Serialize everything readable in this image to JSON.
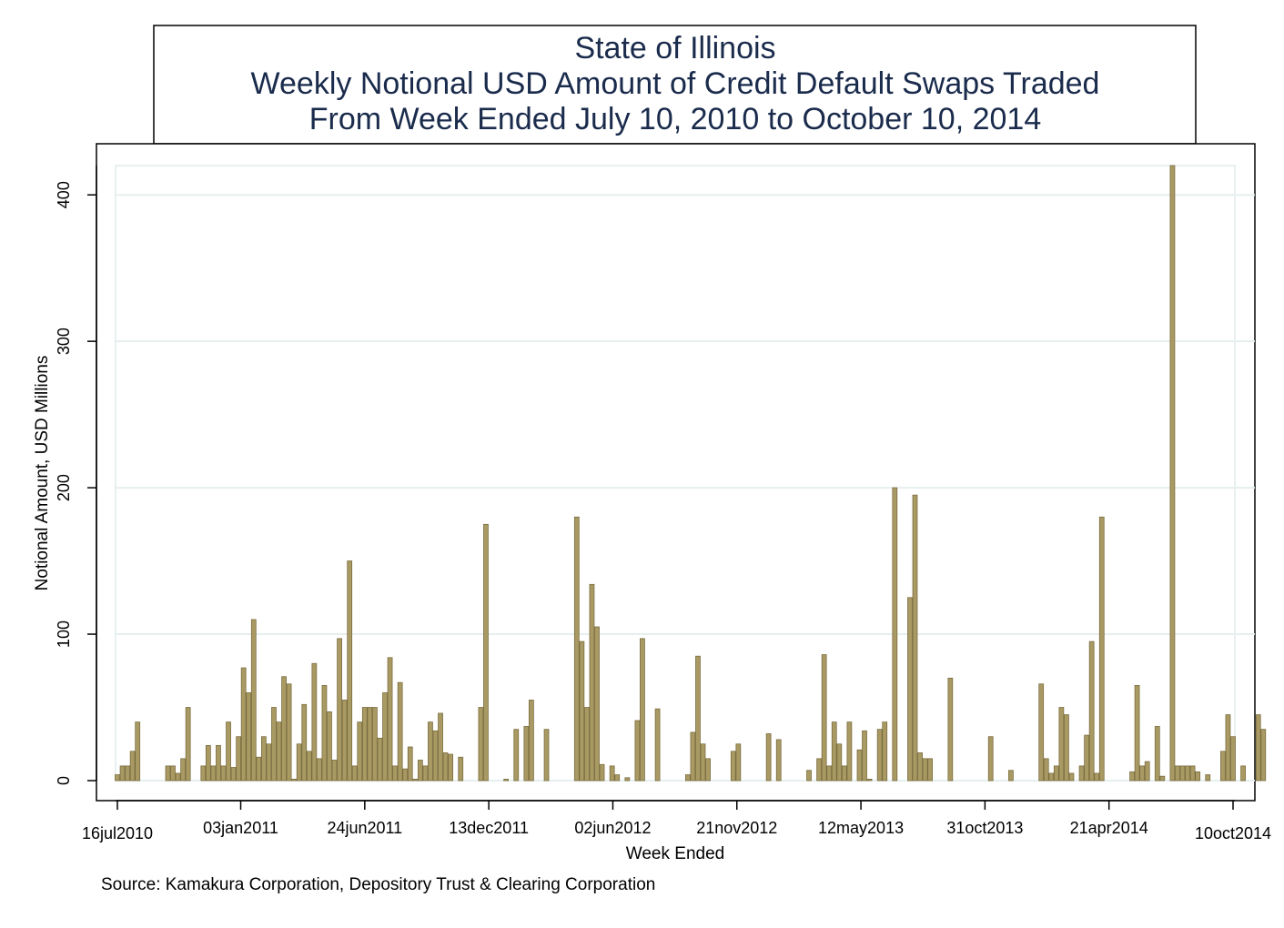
{
  "chart_data": {
    "type": "bar",
    "title_lines": [
      "State of Illinois",
      "Weekly Notional USD Amount of Credit Default Swaps Traded",
      "From Week Ended July 10, 2010 to October 10, 2014"
    ],
    "xlabel": "Week Ended",
    "ylabel": "Notional Amount, USD Millions",
    "note": "Source: Kamakura Corporation, Depository Trust & Clearing Corporation",
    "ylim": [
      0,
      420
    ],
    "yticks": [
      0,
      100,
      200,
      300,
      400
    ],
    "x_range": [
      "2010-07-16",
      "2014-10-10"
    ],
    "xticks": [
      {
        "date": "2010-07-16",
        "label": "16jul2010"
      },
      {
        "date": "2011-01-03",
        "label": "03jan2011"
      },
      {
        "date": "2011-06-24",
        "label": "24jun2011"
      },
      {
        "date": "2011-12-13",
        "label": "13dec2011"
      },
      {
        "date": "2012-06-02",
        "label": "02jun2012"
      },
      {
        "date": "2012-11-21",
        "label": "21nov2012"
      },
      {
        "date": "2013-05-12",
        "label": "12may2013"
      },
      {
        "date": "2013-10-31",
        "label": "31oct2013"
      },
      {
        "date": "2014-04-21",
        "label": "21apr2014"
      },
      {
        "date": "2014-10-10",
        "label": "10oct2014"
      }
    ],
    "grid": true,
    "bar_color": "#a99a64",
    "bar_edge_color": "#7a6c3e",
    "series": [
      {
        "points": [
          {
            "x": "2010-07-16",
            "y": 4
          },
          {
            "x": "2010-07-23",
            "y": 10
          },
          {
            "x": "2010-07-30",
            "y": 10
          },
          {
            "x": "2010-08-06",
            "y": 20
          },
          {
            "x": "2010-08-13",
            "y": 40
          },
          {
            "x": "2010-09-24",
            "y": 10
          },
          {
            "x": "2010-10-01",
            "y": 10
          },
          {
            "x": "2010-10-08",
            "y": 5
          },
          {
            "x": "2010-10-15",
            "y": 15
          },
          {
            "x": "2010-10-22",
            "y": 50
          },
          {
            "x": "2010-11-12",
            "y": 10
          },
          {
            "x": "2010-11-19",
            "y": 24
          },
          {
            "x": "2010-11-26",
            "y": 10
          },
          {
            "x": "2010-12-03",
            "y": 24
          },
          {
            "x": "2010-12-10",
            "y": 10
          },
          {
            "x": "2010-12-17",
            "y": 40
          },
          {
            "x": "2010-12-24",
            "y": 9
          },
          {
            "x": "2010-12-31",
            "y": 30
          },
          {
            "x": "2011-01-07",
            "y": 77
          },
          {
            "x": "2011-01-14",
            "y": 60
          },
          {
            "x": "2011-01-21",
            "y": 110
          },
          {
            "x": "2011-01-28",
            "y": 16
          },
          {
            "x": "2011-02-04",
            "y": 30
          },
          {
            "x": "2011-02-11",
            "y": 25
          },
          {
            "x": "2011-02-18",
            "y": 50
          },
          {
            "x": "2011-02-25",
            "y": 40
          },
          {
            "x": "2011-03-04",
            "y": 71
          },
          {
            "x": "2011-03-11",
            "y": 66
          },
          {
            "x": "2011-03-18",
            "y": 1
          },
          {
            "x": "2011-03-25",
            "y": 25
          },
          {
            "x": "2011-04-01",
            "y": 52
          },
          {
            "x": "2011-04-08",
            "y": 20
          },
          {
            "x": "2011-04-15",
            "y": 80
          },
          {
            "x": "2011-04-22",
            "y": 15
          },
          {
            "x": "2011-04-29",
            "y": 65
          },
          {
            "x": "2011-05-06",
            "y": 47
          },
          {
            "x": "2011-05-13",
            "y": 14
          },
          {
            "x": "2011-05-20",
            "y": 97
          },
          {
            "x": "2011-05-27",
            "y": 55
          },
          {
            "x": "2011-06-03",
            "y": 150
          },
          {
            "x": "2011-06-10",
            "y": 10
          },
          {
            "x": "2011-06-17",
            "y": 40
          },
          {
            "x": "2011-06-24",
            "y": 50
          },
          {
            "x": "2011-07-01",
            "y": 50
          },
          {
            "x": "2011-07-08",
            "y": 50
          },
          {
            "x": "2011-07-15",
            "y": 29
          },
          {
            "x": "2011-07-22",
            "y": 60
          },
          {
            "x": "2011-07-29",
            "y": 84
          },
          {
            "x": "2011-08-05",
            "y": 10
          },
          {
            "x": "2011-08-12",
            "y": 67
          },
          {
            "x": "2011-08-19",
            "y": 8
          },
          {
            "x": "2011-08-26",
            "y": 23
          },
          {
            "x": "2011-09-02",
            "y": 1
          },
          {
            "x": "2011-09-09",
            "y": 14
          },
          {
            "x": "2011-09-16",
            "y": 10
          },
          {
            "x": "2011-09-23",
            "y": 40
          },
          {
            "x": "2011-09-30",
            "y": 34
          },
          {
            "x": "2011-10-07",
            "y": 46
          },
          {
            "x": "2011-10-14",
            "y": 19
          },
          {
            "x": "2011-10-21",
            "y": 18
          },
          {
            "x": "2011-11-04",
            "y": 16
          },
          {
            "x": "2011-12-02",
            "y": 50
          },
          {
            "x": "2011-12-09",
            "y": 175
          },
          {
            "x": "2012-01-06",
            "y": 1
          },
          {
            "x": "2012-01-20",
            "y": 35
          },
          {
            "x": "2012-02-03",
            "y": 37
          },
          {
            "x": "2012-02-10",
            "y": 55
          },
          {
            "x": "2012-03-02",
            "y": 35
          },
          {
            "x": "2012-04-13",
            "y": 180
          },
          {
            "x": "2012-04-20",
            "y": 95
          },
          {
            "x": "2012-04-27",
            "y": 50
          },
          {
            "x": "2012-05-04",
            "y": 134
          },
          {
            "x": "2012-05-11",
            "y": 105
          },
          {
            "x": "2012-05-18",
            "y": 11
          },
          {
            "x": "2012-06-01",
            "y": 10
          },
          {
            "x": "2012-06-08",
            "y": 4
          },
          {
            "x": "2012-06-22",
            "y": 2
          },
          {
            "x": "2012-07-06",
            "y": 41
          },
          {
            "x": "2012-07-13",
            "y": 97
          },
          {
            "x": "2012-08-03",
            "y": 49
          },
          {
            "x": "2012-09-14",
            "y": 4
          },
          {
            "x": "2012-09-21",
            "y": 33
          },
          {
            "x": "2012-09-28",
            "y": 85
          },
          {
            "x": "2012-10-05",
            "y": 25
          },
          {
            "x": "2012-10-12",
            "y": 15
          },
          {
            "x": "2012-11-16",
            "y": 20
          },
          {
            "x": "2012-11-23",
            "y": 25
          },
          {
            "x": "2013-01-04",
            "y": 32
          },
          {
            "x": "2013-01-18",
            "y": 28
          },
          {
            "x": "2013-03-01",
            "y": 7
          },
          {
            "x": "2013-03-15",
            "y": 15
          },
          {
            "x": "2013-03-22",
            "y": 86
          },
          {
            "x": "2013-03-29",
            "y": 10
          },
          {
            "x": "2013-04-05",
            "y": 40
          },
          {
            "x": "2013-04-12",
            "y": 25
          },
          {
            "x": "2013-04-19",
            "y": 10
          },
          {
            "x": "2013-04-26",
            "y": 40
          },
          {
            "x": "2013-05-10",
            "y": 21
          },
          {
            "x": "2013-05-17",
            "y": 34
          },
          {
            "x": "2013-05-24",
            "y": 1
          },
          {
            "x": "2013-06-07",
            "y": 35
          },
          {
            "x": "2013-06-14",
            "y": 40
          },
          {
            "x": "2013-06-28",
            "y": 200
          },
          {
            "x": "2013-07-19",
            "y": 125
          },
          {
            "x": "2013-07-26",
            "y": 195
          },
          {
            "x": "2013-08-02",
            "y": 19
          },
          {
            "x": "2013-08-09",
            "y": 15
          },
          {
            "x": "2013-08-16",
            "y": 15
          },
          {
            "x": "2013-09-13",
            "y": 70
          },
          {
            "x": "2013-11-08",
            "y": 30
          },
          {
            "x": "2013-12-06",
            "y": 7
          },
          {
            "x": "2014-01-17",
            "y": 66
          },
          {
            "x": "2014-01-24",
            "y": 15
          },
          {
            "x": "2014-01-31",
            "y": 5
          },
          {
            "x": "2014-02-07",
            "y": 10
          },
          {
            "x": "2014-02-14",
            "y": 50
          },
          {
            "x": "2014-02-21",
            "y": 45
          },
          {
            "x": "2014-02-28",
            "y": 5
          },
          {
            "x": "2014-03-14",
            "y": 10
          },
          {
            "x": "2014-03-21",
            "y": 31
          },
          {
            "x": "2014-03-28",
            "y": 95
          },
          {
            "x": "2014-04-04",
            "y": 5
          },
          {
            "x": "2014-04-11",
            "y": 180
          },
          {
            "x": "2014-05-23",
            "y": 6
          },
          {
            "x": "2014-05-30",
            "y": 65
          },
          {
            "x": "2014-06-06",
            "y": 10
          },
          {
            "x": "2014-06-13",
            "y": 13
          },
          {
            "x": "2014-06-27",
            "y": 37
          },
          {
            "x": "2014-07-04",
            "y": 3
          },
          {
            "x": "2014-07-18",
            "y": 420
          },
          {
            "x": "2014-07-25",
            "y": 10
          },
          {
            "x": "2014-08-01",
            "y": 10
          },
          {
            "x": "2014-08-08",
            "y": 10
          },
          {
            "x": "2014-08-15",
            "y": 10
          },
          {
            "x": "2014-08-22",
            "y": 6
          },
          {
            "x": "2014-09-05",
            "y": 4
          },
          {
            "x": "2014-09-26",
            "y": 20
          },
          {
            "x": "2014-10-03",
            "y": 45
          },
          {
            "x": "2014-10-10",
            "y": 30
          },
          {
            "x": "2014-10-24",
            "y": 10
          },
          {
            "x": "2014-11-14",
            "y": 45
          },
          {
            "x": "2014-11-21",
            "y": 35
          }
        ]
      }
    ]
  }
}
